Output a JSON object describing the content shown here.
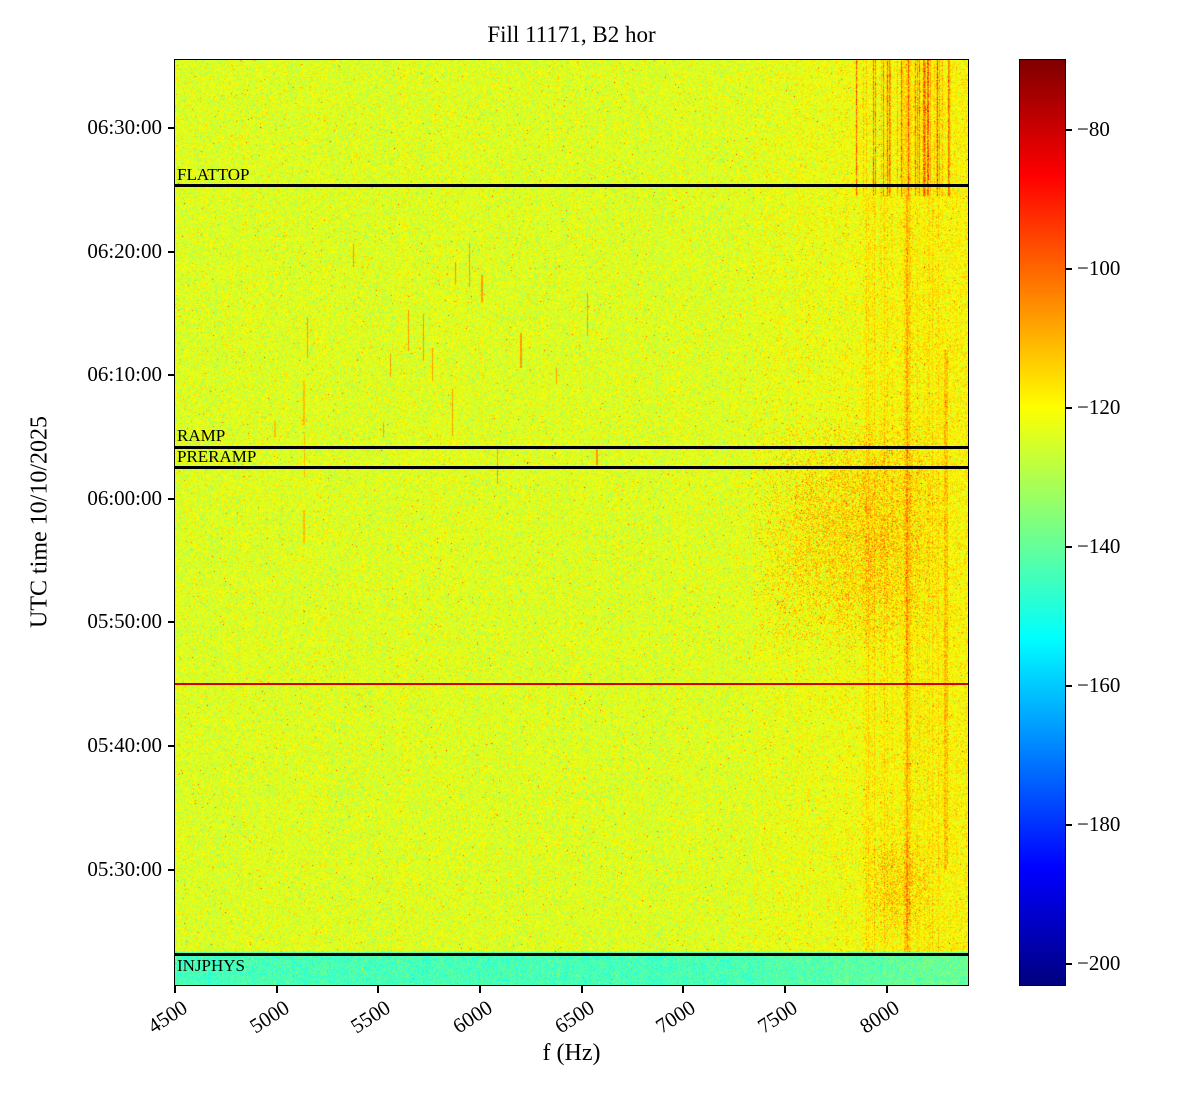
{
  "chart_data": {
    "type": "heatmap",
    "title": "Fill 11171, B2 hor",
    "xlabel": "f (Hz)",
    "ylabel": "UTC time 10/10/2025",
    "x_axis": {
      "min": 4500,
      "max": 8400,
      "ticks": [
        4500,
        5000,
        5500,
        6000,
        6500,
        7000,
        7500,
        8000
      ]
    },
    "y_axis": {
      "min": "05:20:40",
      "max": "06:35:30",
      "date": "10/10/2025",
      "ticks": [
        "05:30:00",
        "05:40:00",
        "05:50:00",
        "06:00:00",
        "06:10:00",
        "06:20:00",
        "06:30:00"
      ]
    },
    "colorbar": {
      "min": -203,
      "max": -70,
      "colormap": "jet",
      "ticks": [
        -80,
        -100,
        -120,
        -140,
        -160,
        -180,
        -200
      ]
    },
    "noise": {
      "mean": -124,
      "std": 4.5,
      "seed": 7
    },
    "annotations": [
      {
        "label": "FLATTOP",
        "time": "06:25:20",
        "color": "#000000",
        "linewidth": 3,
        "label_position": "above"
      },
      {
        "label": "RAMP",
        "time": "06:04:10",
        "color": "#000000",
        "linewidth": 3,
        "label_position": "above"
      },
      {
        "label": "PRERAMP",
        "time": "06:02:30",
        "color": "#000000",
        "linewidth": 3,
        "label_position": "above"
      },
      {
        "label": "",
        "time": "05:45:00",
        "color": "#d40000",
        "linewidth": 2,
        "label_position": "above"
      },
      {
        "label": "INJPHYS",
        "time": "05:23:10",
        "color": "#000000",
        "linewidth": 3,
        "label_position": "below"
      }
    ],
    "features": [
      {
        "type": "time_band",
        "t0": "05:20:40",
        "t1": "05:23:20",
        "mean": -144,
        "std": 3.5
      },
      {
        "type": "tint",
        "f0": 7200,
        "f1": 8400,
        "boost": 5
      },
      {
        "type": "blob",
        "f0": 7300,
        "f1": 8300,
        "t0": "05:47:00",
        "t1": "06:07:00",
        "boost": 15,
        "density": 0.55
      },
      {
        "type": "blob",
        "f0": 7880,
        "f1": 8230,
        "t0": "05:24:30",
        "t1": "05:33:00",
        "boost": 14,
        "density": 0.45
      },
      {
        "type": "streaks",
        "f0": 7840,
        "f1": 8310,
        "t0": "06:24:30",
        "t1": "06:35:30",
        "boost": 34
      },
      {
        "type": "streaks",
        "f0": 7880,
        "f1": 8260,
        "t0": "05:23:20",
        "t1": "06:24:30",
        "boost": 9
      },
      {
        "type": "column",
        "f": 8100,
        "width_hz": 30,
        "t0": "05:23:20",
        "t1": "06:35:30",
        "boost": 9
      },
      {
        "type": "column",
        "f": 8290,
        "width_hz": 15,
        "t0": "05:30:00",
        "t1": "06:12:00",
        "boost": 11
      },
      {
        "type": "dashes",
        "f0": 5000,
        "f1": 6650,
        "t0": "06:01:00",
        "t1": "06:21:00",
        "boost": 17,
        "count": 16
      },
      {
        "type": "dashes",
        "f0": 4950,
        "f1": 5150,
        "t0": "05:55:00",
        "t1": "06:10:00",
        "boost": 12,
        "count": 4
      }
    ]
  }
}
